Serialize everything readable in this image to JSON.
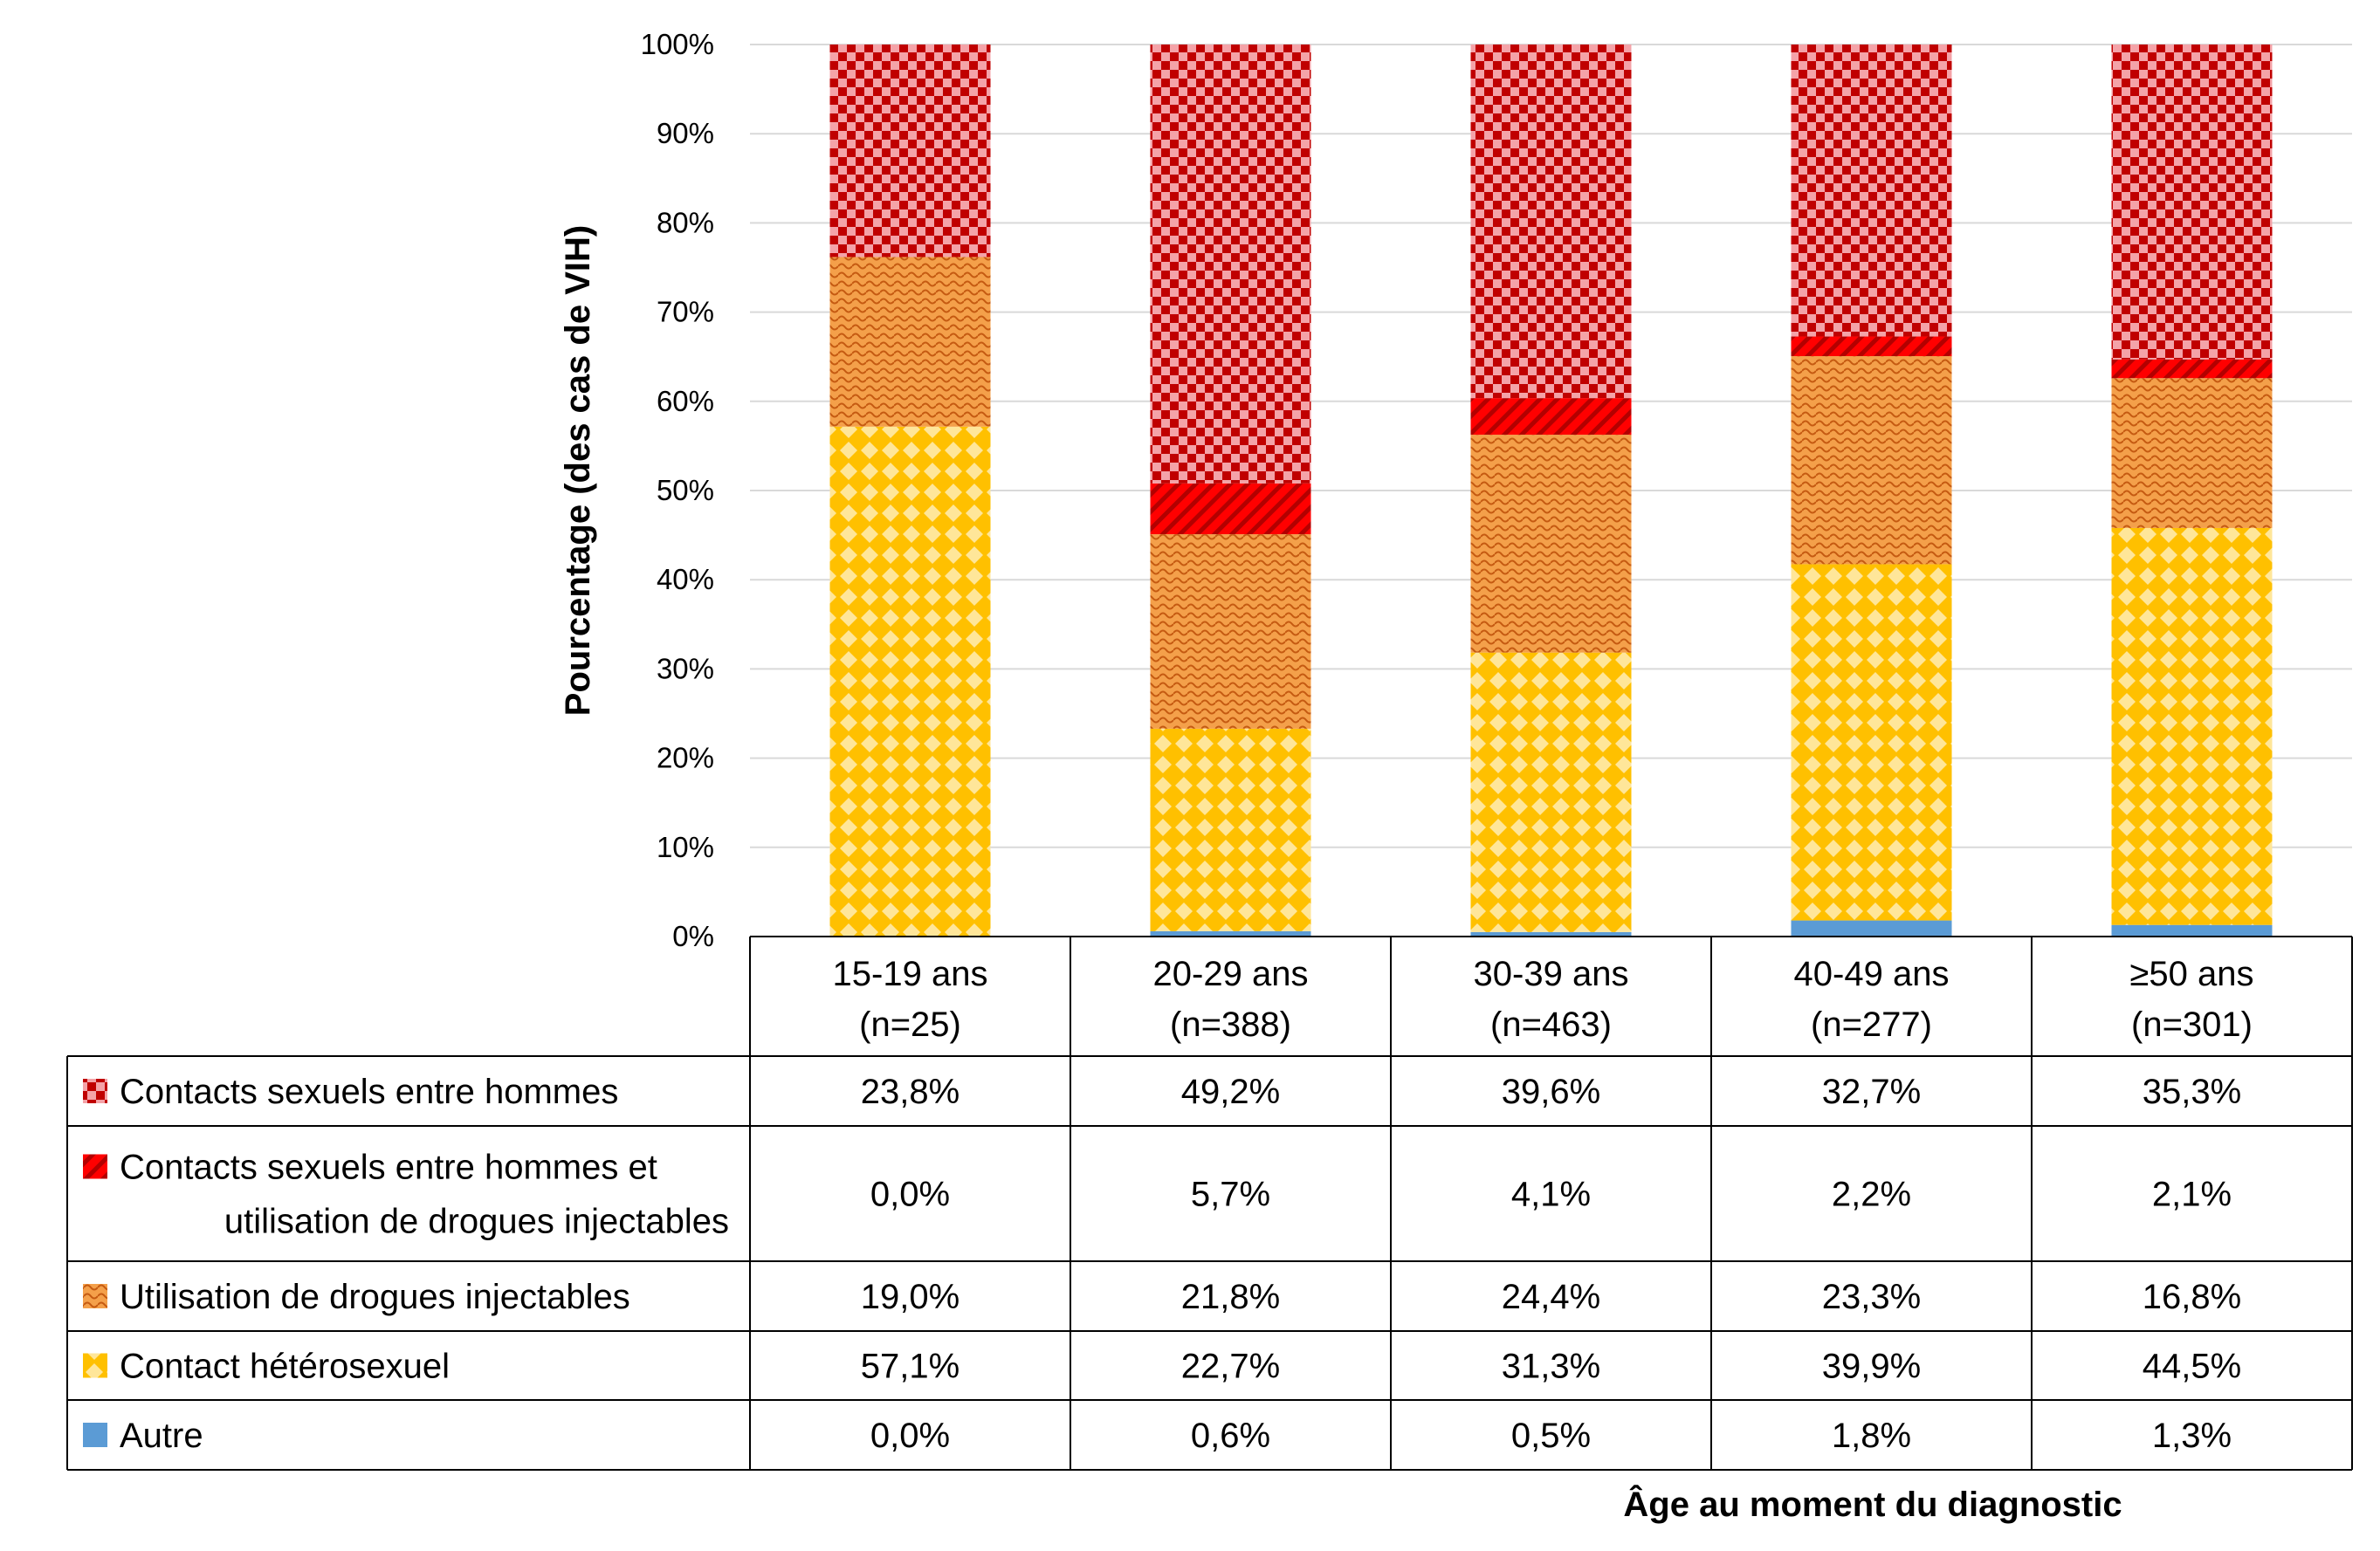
{
  "chart_data": {
    "type": "bar",
    "stacked": "percent",
    "categories": [
      {
        "label": "15-19 ans",
        "n": "(n=25)"
      },
      {
        "label": "20-29 ans",
        "n": "(n=388)"
      },
      {
        "label": "30-39 ans",
        "n": "(n=463)"
      },
      {
        "label": "40-49 ans",
        "n": "(n=277)"
      },
      {
        "label": "≥50 ans",
        "n": "(n=301)"
      }
    ],
    "series": [
      {
        "name": "Autre",
        "lines": [
          "Autre"
        ],
        "color": "#5b9bd5",
        "pattern": "solid",
        "values": [
          0.0,
          0.6,
          0.5,
          1.8,
          1.3
        ],
        "labels": [
          "0,0%",
          "0,6%",
          "0,5%",
          "1,8%",
          "1,3%"
        ]
      },
      {
        "name": "Contact hétérosexuel",
        "lines": [
          "Contact hétérosexuel"
        ],
        "color": "#ffc000",
        "pattern": "diamond",
        "values": [
          57.1,
          22.7,
          31.3,
          39.9,
          44.5
        ],
        "labels": [
          "57,1%",
          "22,7%",
          "31,3%",
          "39,9%",
          "44,5%"
        ]
      },
      {
        "name": "Utilisation de drogues injectables",
        "lines": [
          "Utilisation de drogues injectables"
        ],
        "color": "#ed7d31",
        "pattern": "wave",
        "values": [
          19.0,
          21.8,
          24.4,
          23.3,
          16.8
        ],
        "labels": [
          "19,0%",
          "21,8%",
          "24,4%",
          "23,3%",
          "16,8%"
        ]
      },
      {
        "name": "Contacts sexuels entre hommes et utilisation de drogues injectables",
        "lines": [
          "Contacts sexuels entre hommes et",
          "utilisation de drogues injectables"
        ],
        "color": "#ff0000",
        "pattern": "diagonal",
        "values": [
          0.0,
          5.7,
          4.1,
          2.2,
          2.1
        ],
        "labels": [
          "0,0%",
          "5,7%",
          "4,1%",
          "2,2%",
          "2,1%"
        ]
      },
      {
        "name": "Contacts sexuels entre hommes",
        "lines": [
          "Contacts sexuels entre hommes"
        ],
        "color": "#c00000",
        "pattern": "checker",
        "values": [
          23.8,
          49.2,
          39.6,
          32.7,
          35.3
        ],
        "labels": [
          "23,8%",
          "49,2%",
          "39,6%",
          "32,7%",
          "35,3%"
        ]
      }
    ],
    "table_order": [
      4,
      3,
      2,
      1,
      0
    ],
    "y_ticks": [
      "0%",
      "10%",
      "20%",
      "30%",
      "40%",
      "50%",
      "60%",
      "70%",
      "80%",
      "90%",
      "100%"
    ],
    "ylim": [
      0,
      100
    ],
    "ylabel": "Pourcentage (des cas de VIH)",
    "xlabel": "Âge au moment du diagnostic",
    "grid": true,
    "legend": "data-table"
  }
}
